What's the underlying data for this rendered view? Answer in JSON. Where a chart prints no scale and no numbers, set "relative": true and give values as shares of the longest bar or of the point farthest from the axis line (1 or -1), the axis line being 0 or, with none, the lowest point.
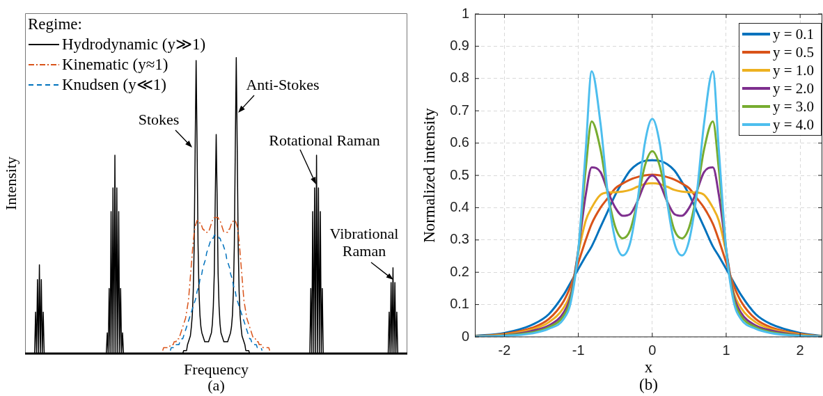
{
  "chart_data": [
    {
      "type": "line",
      "xlabel": "Frequency",
      "ylabel": "Intensity",
      "relative": true,
      "grid": false,
      "legend": "top left",
      "legend_title": "Regime:",
      "annotations": [
        "Stokes",
        "Anti-Stokes",
        "Rotational Raman",
        "Vibrational Raman",
        "(a)"
      ],
      "categories": [
        null,
        null,
        null,
        null,
        null,
        null,
        null,
        null,
        null,
        null,
        null,
        null,
        null,
        null,
        null,
        null,
        null,
        null,
        null,
        null,
        null,
        null,
        null,
        null,
        null,
        null,
        null,
        null,
        null,
        null,
        null,
        null,
        null,
        null,
        null,
        null,
        null,
        null,
        null,
        null,
        null,
        null,
        null,
        null,
        null,
        null,
        null,
        null,
        null,
        null,
        null,
        null,
        null,
        null,
        null,
        null,
        null,
        null,
        null,
        null,
        null,
        null,
        null,
        null,
        null,
        null,
        null,
        null,
        null,
        null,
        null,
        null,
        null,
        null,
        null,
        null,
        null,
        null,
        null,
        null,
        null,
        null,
        null,
        null,
        null,
        null,
        null,
        null,
        null,
        null,
        null,
        null,
        null,
        null,
        null,
        null,
        null,
        null,
        null,
        null,
        null,
        null,
        null,
        null,
        null,
        null,
        null,
        null,
        null,
        null,
        null,
        null,
        null,
        null,
        null,
        null,
        null,
        null,
        null,
        null,
        null,
        null,
        null,
        null,
        null,
        null,
        null,
        null,
        null,
        null,
        null,
        null,
        null,
        null,
        null,
        null,
        null,
        null,
        null,
        null,
        null,
        null,
        null,
        null,
        null,
        null,
        null,
        null,
        null,
        null,
        null,
        null,
        null,
        null,
        null,
        null,
        null,
        null,
        null,
        null,
        null,
        null,
        null,
        null,
        null,
        null,
        null,
        null,
        null,
        null,
        null,
        null,
        null,
        null,
        null,
        null,
        null,
        null,
        null,
        null,
        null,
        null,
        null,
        null,
        null,
        null,
        null,
        null,
        null,
        null,
        null,
        null,
        null,
        null,
        null,
        null,
        null,
        null,
        null,
        null,
        null,
        null,
        null,
        null,
        null,
        null,
        null,
        null,
        null,
        null,
        null,
        null,
        null,
        null,
        null,
        null,
        null,
        null,
        null,
        null,
        null,
        null,
        null,
        null,
        null,
        null,
        null,
        null,
        null,
        null,
        null,
        null,
        null,
        null,
        null,
        null,
        null,
        null,
        null,
        null,
        null,
        null,
        null,
        null,
        null,
        null,
        null,
        null,
        null,
        null,
        null,
        null,
        null,
        null,
        null,
        null,
        null,
        null,
        null,
        null,
        null,
        null,
        null,
        null,
        null,
        null,
        null,
        null,
        null,
        null,
        null,
        null,
        null,
        null,
        null,
        null,
        null,
        null,
        null,
        null,
        null,
        null,
        null,
        null,
        null,
        null,
        null,
        null,
        null,
        null,
        null,
        null,
        null,
        null,
        null,
        null,
        null,
        null,
        null,
        null,
        null,
        null,
        null,
        null,
        null,
        null,
        null,
        null,
        null,
        null,
        null,
        null,
        null,
        null,
        null,
        null,
        null,
        null,
        null,
        null,
        null,
        null,
        null,
        null,
        null,
        null,
        null,
        null,
        null,
        null,
        null,
        null,
        null,
        null,
        null,
        null,
        null,
        null,
        null,
        null,
        null,
        null,
        null,
        null,
        null,
        null,
        null,
        null,
        null,
        null,
        null,
        null,
        null,
        null,
        null,
        null,
        null,
        null,
        null,
        null,
        null,
        null,
        null,
        null,
        null,
        null,
        null,
        null,
        null,
        null,
        null,
        null,
        null,
        null,
        null,
        null,
        null,
        null,
        null,
        null,
        null,
        null,
        null,
        null,
        null,
        null,
        null,
        null,
        null,
        null,
        null,
        null,
        null,
        null,
        null,
        null,
        null,
        null,
        null,
        null,
        null
      ],
      "series": [
        {
          "name": "Hydrodynamic (y≫1)",
          "color": "#000000",
          "line_style": "solid",
          "values": [
            0,
            0,
            0,
            0,
            0,
            0,
            0,
            0,
            0,
            0,
            0,
            0.14,
            0,
            0.25,
            0,
            0.3,
            0,
            0.25,
            0,
            0.14,
            0,
            0,
            0,
            0,
            0,
            0,
            0,
            0,
            0,
            0,
            0,
            0,
            0,
            0,
            0,
            0,
            0,
            0,
            0,
            0,
            0,
            0,
            0,
            0,
            0,
            0,
            0,
            0,
            0,
            0,
            0,
            0,
            0,
            0,
            0,
            0,
            0,
            0,
            0,
            0,
            0,
            0,
            0,
            0,
            0,
            0,
            0,
            0,
            0,
            0,
            0,
            0,
            0,
            0,
            0,
            0,
            0,
            0,
            0,
            0,
            0,
            0,
            0,
            0,
            0,
            0,
            0.07,
            0,
            0.22,
            0,
            0.48,
            0,
            0.56,
            0,
            0.67,
            0,
            0.56,
            0,
            0.48,
            0,
            0.22,
            0,
            0.07,
            0,
            0,
            0,
            0,
            0,
            0,
            0,
            0,
            0,
            0,
            0,
            0,
            0,
            0,
            0,
            0,
            0,
            0,
            0,
            0,
            0,
            0,
            0,
            0,
            0,
            0,
            0,
            0,
            0,
            0,
            0,
            0,
            0,
            0,
            0,
            0,
            0,
            0,
            0,
            0,
            0,
            0,
            0,
            0,
            0,
            0,
            0,
            0,
            0,
            0,
            0,
            0,
            0,
            0,
            0,
            0,
            0,
            0,
            0,
            0,
            0,
            0,
            0,
            0.01,
            0.01,
            0.01,
            0.01,
            0.03,
            0.04,
            0.05,
            0.06,
            0.09,
            0.13,
            0.21,
            0.37,
            0.7,
            0.99,
            0.7,
            0.37,
            0.21,
            0.13,
            0.09,
            0.07,
            0.06,
            0.05,
            0.04,
            0.04,
            0.04,
            0.04,
            0.04,
            0.05,
            0.06,
            0.07,
            0.1,
            0.16,
            0.27,
            0.52,
            0.74,
            0.52,
            0.27,
            0.16,
            0.1,
            0.07,
            0.06,
            0.05,
            0.04,
            0.04,
            0.04,
            0.04,
            0.04,
            0.05,
            0.06,
            0.07,
            0.09,
            0.13,
            0.21,
            0.37,
            0.7,
            1,
            0.7,
            0.37,
            0.21,
            0.13,
            0.09,
            0.06,
            0.05,
            0.04,
            0.03,
            0.01,
            0.01,
            0.01,
            0.01,
            0,
            0,
            0,
            0,
            0,
            0,
            0,
            0,
            0,
            0,
            0,
            0,
            0,
            0,
            0,
            0,
            0,
            0,
            0,
            0,
            0,
            0,
            0,
            0,
            0,
            0,
            0,
            0,
            0,
            0,
            0,
            0,
            0,
            0,
            0,
            0,
            0,
            0,
            0,
            0,
            0,
            0,
            0,
            0,
            0,
            0,
            0,
            0,
            0,
            0,
            0,
            0,
            0,
            0,
            0,
            0,
            0,
            0,
            0,
            0,
            0,
            0,
            0,
            0,
            0.22,
            0,
            0.48,
            0,
            0.56,
            0,
            0.67,
            0,
            0.56,
            0,
            0.48,
            0,
            0.22,
            0,
            0,
            0,
            0,
            0,
            0,
            0,
            0,
            0,
            0,
            0,
            0,
            0,
            0,
            0,
            0,
            0,
            0,
            0,
            0,
            0,
            0,
            0,
            0,
            0,
            0,
            0,
            0,
            0,
            0,
            0,
            0,
            0,
            0,
            0,
            0,
            0,
            0,
            0,
            0,
            0,
            0,
            0,
            0,
            0,
            0,
            0,
            0,
            0,
            0,
            0,
            0,
            0,
            0,
            0,
            0,
            0,
            0,
            0,
            0,
            0,
            0,
            0,
            0,
            0,
            0,
            0,
            0,
            0,
            0.14,
            0,
            0.24,
            0,
            0.29,
            0,
            0.24,
            0,
            0.14,
            0,
            0,
            0,
            0,
            0,
            0,
            0,
            0,
            0,
            0,
            0
          ]
        },
        {
          "name": "Kinematic (y≈1)",
          "color": "#d95319",
          "line_style": "dashdot",
          "values": [
            null,
            null,
            null,
            null,
            null,
            null,
            null,
            null,
            null,
            null,
            null,
            null,
            null,
            null,
            null,
            null,
            null,
            null,
            null,
            null,
            null,
            null,
            null,
            null,
            null,
            null,
            null,
            null,
            null,
            null,
            null,
            null,
            null,
            null,
            null,
            null,
            null,
            null,
            null,
            null,
            null,
            null,
            null,
            null,
            null,
            null,
            null,
            null,
            null,
            null,
            null,
            null,
            null,
            null,
            null,
            null,
            null,
            null,
            null,
            null,
            null,
            null,
            null,
            null,
            null,
            null,
            null,
            null,
            null,
            null,
            null,
            null,
            null,
            null,
            null,
            null,
            null,
            null,
            null,
            null,
            null,
            null,
            null,
            null,
            null,
            null,
            null,
            null,
            null,
            null,
            null,
            null,
            null,
            null,
            null,
            null,
            null,
            null,
            null,
            null,
            null,
            null,
            null,
            null,
            null,
            null,
            null,
            null,
            null,
            null,
            null,
            null,
            null,
            null,
            null,
            null,
            null,
            null,
            null,
            null,
            null,
            null,
            null,
            null,
            null,
            null,
            null,
            null,
            null,
            null,
            null,
            null,
            null,
            null,
            null,
            null,
            null,
            null,
            null,
            null,
            null,
            null,
            null,
            null,
            0.01,
            0.02,
            0.02,
            0.02,
            0.02,
            0.02,
            0.02,
            0.02,
            0.03,
            0.03,
            0.03,
            0.03,
            0.04,
            0.04,
            0.04,
            0.05,
            0.05,
            0.05,
            0.06,
            0.07,
            0.08,
            0.09,
            0.1,
            0.11,
            0.12,
            0.14,
            0.16,
            0.18,
            0.22,
            0.26,
            0.3,
            0.34,
            0.38,
            0.41,
            0.43,
            0.44,
            0.45,
            0.45,
            0.45,
            0.44,
            0.44,
            0.43,
            0.42,
            0.42,
            0.41,
            0.41,
            0.41,
            0.41,
            0.41,
            0.42,
            0.43,
            0.44,
            0.45,
            0.45,
            0.46,
            0.46,
            0.46,
            0.46,
            0.46,
            0.45,
            0.45,
            0.44,
            0.43,
            0.42,
            0.41,
            0.41,
            0.41,
            0.41,
            0.41,
            0.42,
            0.42,
            0.43,
            0.44,
            0.44,
            0.45,
            0.45,
            0.45,
            0.44,
            0.43,
            0.41,
            0.38,
            0.34,
            0.3,
            0.26,
            0.22,
            0.18,
            0.16,
            0.14,
            0.12,
            0.11,
            0.1,
            0.09,
            0.08,
            0.07,
            0.06,
            0.05,
            0.05,
            0.05,
            0.04,
            0.04,
            0.04,
            0.03,
            0.03,
            0.03,
            0.03,
            0.02,
            0.02,
            0.02,
            0.02,
            0.02,
            0.02,
            0.02,
            0.01,
            null,
            null,
            null,
            null,
            null,
            null,
            null,
            null,
            null,
            null,
            null,
            null,
            null,
            null,
            null,
            null,
            null,
            null,
            null,
            null,
            null,
            null,
            null,
            null,
            null,
            null,
            null,
            null,
            null,
            null,
            null,
            null,
            null,
            null,
            null,
            null,
            null,
            null,
            null,
            null,
            null,
            null,
            null,
            null,
            null,
            null,
            null,
            null,
            null,
            null,
            null,
            null,
            null,
            null,
            null,
            null,
            null,
            null,
            null,
            null,
            null,
            null,
            null,
            null,
            null,
            null,
            null,
            null,
            null,
            null,
            null,
            null,
            null,
            null,
            null,
            null,
            null,
            null,
            null,
            null,
            null,
            null,
            null,
            null,
            null,
            null,
            null,
            null,
            null,
            null,
            null,
            null,
            null,
            null,
            null,
            null,
            null,
            null,
            null,
            null,
            null,
            null,
            null,
            null,
            null,
            null,
            null,
            null,
            null,
            null,
            null,
            null,
            null,
            null,
            null,
            null,
            null,
            null,
            null,
            null,
            null,
            null,
            null,
            null,
            null,
            null,
            null,
            null,
            null,
            null,
            null,
            null,
            null,
            null,
            null,
            null,
            null,
            null,
            null,
            null,
            null,
            null,
            null,
            null
          ]
        },
        {
          "name": "Knudsen (y≪1)",
          "color": "#0072bd",
          "line_style": "dashed",
          "values": [
            null,
            null,
            null,
            null,
            null,
            null,
            null,
            null,
            null,
            null,
            null,
            null,
            null,
            null,
            null,
            null,
            null,
            null,
            null,
            null,
            null,
            null,
            null,
            null,
            null,
            null,
            null,
            null,
            null,
            null,
            null,
            null,
            null,
            null,
            null,
            null,
            null,
            null,
            null,
            null,
            null,
            null,
            null,
            null,
            null,
            null,
            null,
            null,
            null,
            null,
            null,
            null,
            null,
            null,
            null,
            null,
            null,
            null,
            null,
            null,
            null,
            null,
            null,
            null,
            null,
            null,
            null,
            null,
            null,
            null,
            null,
            null,
            null,
            null,
            null,
            null,
            null,
            null,
            null,
            null,
            null,
            null,
            null,
            null,
            null,
            null,
            null,
            null,
            null,
            null,
            null,
            null,
            null,
            null,
            null,
            null,
            null,
            null,
            null,
            null,
            null,
            null,
            null,
            null,
            null,
            null,
            null,
            null,
            null,
            null,
            null,
            null,
            null,
            null,
            null,
            null,
            null,
            null,
            null,
            null,
            null,
            null,
            null,
            null,
            null,
            null,
            null,
            null,
            null,
            null,
            null,
            null,
            null,
            null,
            null,
            null,
            null,
            null,
            null,
            null,
            null,
            null,
            null,
            null,
            null,
            null,
            null,
            null,
            null,
            null,
            null,
            null,
            0.01,
            0.02,
            0.02,
            0.02,
            0.02,
            0.02,
            0.03,
            0.03,
            0.03,
            0.03,
            0.04,
            0.04,
            0.05,
            0.05,
            0.06,
            0.07,
            0.08,
            0.09,
            0.1,
            0.11,
            0.12,
            0.13,
            0.14,
            0.15,
            0.16,
            0.17,
            0.18,
            0.19,
            0.21,
            0.22,
            0.23,
            0.25,
            0.26,
            0.27,
            0.29,
            0.3,
            0.31,
            0.32,
            0.34,
            0.35,
            0.36,
            0.37,
            0.38,
            0.38,
            0.39,
            0.39,
            0.4,
            0.4,
            0.4,
            0.4,
            0.4,
            0.39,
            0.39,
            0.38,
            0.38,
            0.37,
            0.36,
            0.35,
            0.34,
            0.32,
            0.31,
            0.3,
            0.29,
            0.27,
            0.26,
            0.25,
            0.23,
            0.22,
            0.21,
            0.19,
            0.18,
            0.17,
            0.16,
            0.15,
            0.14,
            0.13,
            0.12,
            0.11,
            0.1,
            0.09,
            0.08,
            0.07,
            0.06,
            0.05,
            0.05,
            0.04,
            0.04,
            0.03,
            0.03,
            0.03,
            0.03,
            0.02,
            0.02,
            0.02,
            0.02,
            0.02,
            0.01,
            null,
            null,
            null,
            null,
            null,
            null,
            null,
            null,
            null,
            null,
            null,
            null,
            null,
            null,
            null,
            null,
            null,
            null,
            null,
            null,
            null,
            null,
            null,
            null,
            null,
            null,
            null,
            null,
            null,
            null,
            null,
            null,
            null,
            null,
            null,
            null,
            null,
            null,
            null,
            null,
            null,
            null,
            null,
            null,
            null,
            null,
            null,
            null,
            null,
            null,
            null,
            null,
            null,
            null,
            null,
            null,
            null,
            null,
            null,
            null,
            null,
            null,
            null,
            null,
            null,
            null,
            null,
            null,
            null,
            null,
            null,
            null,
            null,
            null,
            null,
            null,
            null,
            null,
            null,
            null,
            null,
            null,
            null,
            null,
            null,
            null,
            null,
            null,
            null,
            null,
            null,
            null,
            null,
            null,
            null,
            null,
            null,
            null,
            null,
            null,
            null,
            null,
            null,
            null,
            null,
            null,
            null,
            null,
            null,
            null,
            null,
            null,
            null,
            null,
            null,
            null,
            null,
            null,
            null,
            null,
            null,
            null,
            null,
            null,
            null,
            null,
            null,
            null,
            null,
            null,
            null,
            null,
            null,
            null,
            null,
            null,
            null,
            null,
            null,
            null,
            null,
            null,
            null,
            null,
            null,
            null,
            null,
            null,
            null,
            null,
            null,
            null
          ]
        }
      ]
    },
    {
      "type": "line",
      "xlabel": "x",
      "ylabel": "Normalized intensity",
      "xlim": [
        -2.4,
        2.3
      ],
      "xticks": [
        -2,
        -1,
        0,
        1,
        2
      ],
      "ylim": [
        0,
        1
      ],
      "yticks": [
        0,
        0.1,
        0.2,
        0.3,
        0.4,
        0.5,
        0.6,
        0.7,
        0.8,
        0.9,
        1
      ],
      "grid": true,
      "legend": "top right",
      "line_style": "solid",
      "annotations": [
        "(b)"
      ],
      "x": [
        -2.4,
        -2.0,
        -1.6,
        -1.4,
        -1.2,
        -1.1,
        -1.0,
        -0.9,
        -0.82,
        -0.7,
        -0.6,
        -0.5,
        -0.4,
        -0.3,
        -0.2,
        -0.1,
        0,
        0.1,
        0.2,
        0.3,
        0.4,
        0.5,
        0.6,
        0.7,
        0.82,
        0.9,
        1.0,
        1.1,
        1.2,
        1.4,
        1.6,
        2.0,
        2.3
      ],
      "series": [
        {
          "name": "y = 0.1",
          "color": "#0072bd",
          "values": [
            0.003,
            0.012,
            0.04,
            0.07,
            0.13,
            0.17,
            0.21,
            0.25,
            0.28,
            0.34,
            0.39,
            0.44,
            0.48,
            0.515,
            0.535,
            0.545,
            0.547,
            0.545,
            0.535,
            0.515,
            0.48,
            0.44,
            0.39,
            0.34,
            0.28,
            0.25,
            0.21,
            0.17,
            0.13,
            0.07,
            0.04,
            0.012,
            0.003
          ]
        },
        {
          "name": "y = 0.5",
          "color": "#d95319",
          "values": [
            0.002,
            0.009,
            0.03,
            0.055,
            0.11,
            0.16,
            0.23,
            0.3,
            0.35,
            0.4,
            0.43,
            0.46,
            0.475,
            0.487,
            0.495,
            0.5,
            0.502,
            0.5,
            0.495,
            0.487,
            0.475,
            0.46,
            0.43,
            0.4,
            0.35,
            0.3,
            0.23,
            0.16,
            0.11,
            0.055,
            0.03,
            0.009,
            0.002
          ]
        },
        {
          "name": "y = 1.0",
          "color": "#edb120",
          "values": [
            0.002,
            0.007,
            0.025,
            0.045,
            0.09,
            0.14,
            0.26,
            0.36,
            0.4,
            0.44,
            0.447,
            0.448,
            0.45,
            0.455,
            0.465,
            0.473,
            0.476,
            0.473,
            0.465,
            0.455,
            0.45,
            0.448,
            0.447,
            0.44,
            0.4,
            0.36,
            0.26,
            0.14,
            0.09,
            0.045,
            0.025,
            0.007,
            0.002
          ]
        },
        {
          "name": "y = 2.0",
          "color": "#7e2f8e",
          "values": [
            0.001,
            0.005,
            0.02,
            0.035,
            0.075,
            0.13,
            0.27,
            0.44,
            0.525,
            0.51,
            0.45,
            0.4,
            0.375,
            0.38,
            0.42,
            0.475,
            0.5,
            0.475,
            0.42,
            0.38,
            0.375,
            0.4,
            0.45,
            0.51,
            0.525,
            0.44,
            0.27,
            0.13,
            0.075,
            0.035,
            0.02,
            0.005,
            0.001
          ]
        },
        {
          "name": "y = 3.0",
          "color": "#77ac30",
          "values": [
            0.001,
            0.004,
            0.015,
            0.03,
            0.065,
            0.12,
            0.27,
            0.52,
            0.667,
            0.58,
            0.44,
            0.34,
            0.305,
            0.33,
            0.42,
            0.53,
            0.575,
            0.53,
            0.42,
            0.33,
            0.305,
            0.34,
            0.44,
            0.58,
            0.667,
            0.52,
            0.27,
            0.12,
            0.065,
            0.03,
            0.015,
            0.004,
            0.001
          ]
        },
        {
          "name": "y = 4.0",
          "color": "#4dbeee",
          "values": [
            0.001,
            0.003,
            0.012,
            0.025,
            0.055,
            0.11,
            0.27,
            0.58,
            0.822,
            0.66,
            0.44,
            0.3,
            0.252,
            0.29,
            0.42,
            0.6,
            0.675,
            0.6,
            0.42,
            0.29,
            0.252,
            0.3,
            0.44,
            0.66,
            0.822,
            0.58,
            0.27,
            0.11,
            0.055,
            0.025,
            0.012,
            0.003,
            0.001
          ]
        }
      ]
    }
  ]
}
